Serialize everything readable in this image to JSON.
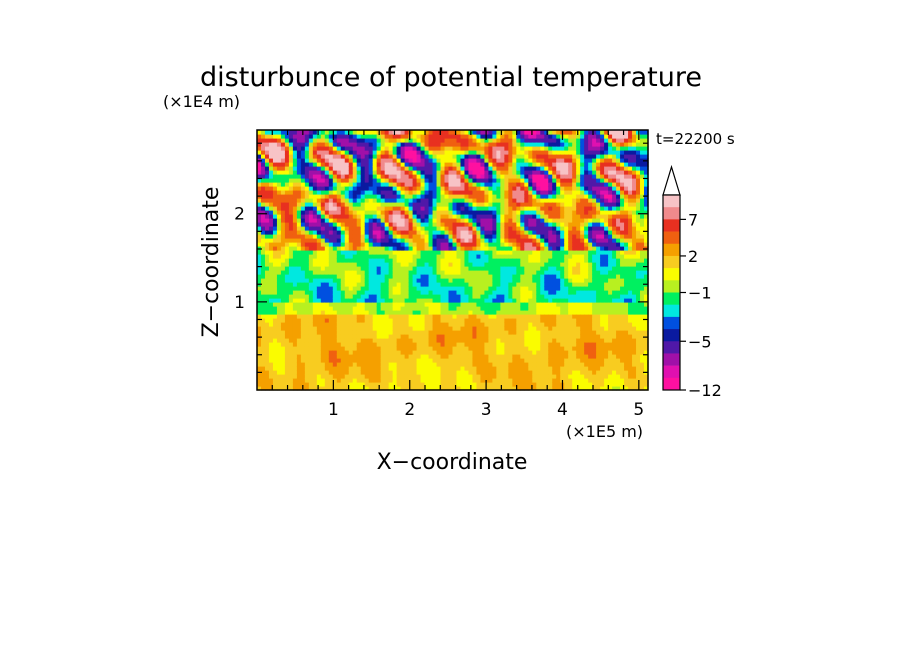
{
  "chart_data": {
    "type": "heatmap",
    "title": "disturbunce of potential temperature",
    "time_label": "t=22200 s",
    "xlabel": "X−coordinate",
    "ylabel": "Z−coordinate",
    "x_unit": "(×1E5 m)",
    "y_unit": "(×1E4 m)",
    "xlim": [
      0,
      5.12
    ],
    "ylim": [
      0,
      2.95
    ],
    "x_ticks": [
      "1",
      "2",
      "3",
      "4",
      "5"
    ],
    "x_tick_values": [
      1,
      2,
      3,
      4,
      5
    ],
    "y_ticks": [
      "1",
      "2"
    ],
    "y_tick_values": [
      1,
      2
    ],
    "colorbar": {
      "tick_labels": [
        "7",
        "2",
        "−1",
        "−5",
        "−12"
      ],
      "tick_values": [
        7,
        2,
        -1,
        -5,
        -12
      ],
      "levels": [
        {
          "lower": 9,
          "color": "#f7c3c6"
        },
        {
          "lower": 7,
          "color": "#f08a8c"
        },
        {
          "lower": 5,
          "color": "#e83020"
        },
        {
          "lower": 3,
          "color": "#f06010"
        },
        {
          "lower": 2,
          "color": "#f5a000"
        },
        {
          "lower": 1,
          "color": "#f8cc20"
        },
        {
          "lower": 0,
          "color": "#fafc00"
        },
        {
          "lower": -1,
          "color": "#b8f020"
        },
        {
          "lower": -2,
          "color": "#00f060"
        },
        {
          "lower": -3,
          "color": "#00e8e0"
        },
        {
          "lower": -4,
          "color": "#0050e0"
        },
        {
          "lower": -5,
          "color": "#0a1aa0"
        },
        {
          "lower": -7,
          "color": "#5018a8"
        },
        {
          "lower": -9,
          "color": "#a010a8"
        },
        {
          "lower": -10,
          "color": "#e010b0"
        },
        {
          "lower": -12,
          "color": "#ff10a0"
        }
      ],
      "extend_top_color": "#ffffff"
    }
  }
}
